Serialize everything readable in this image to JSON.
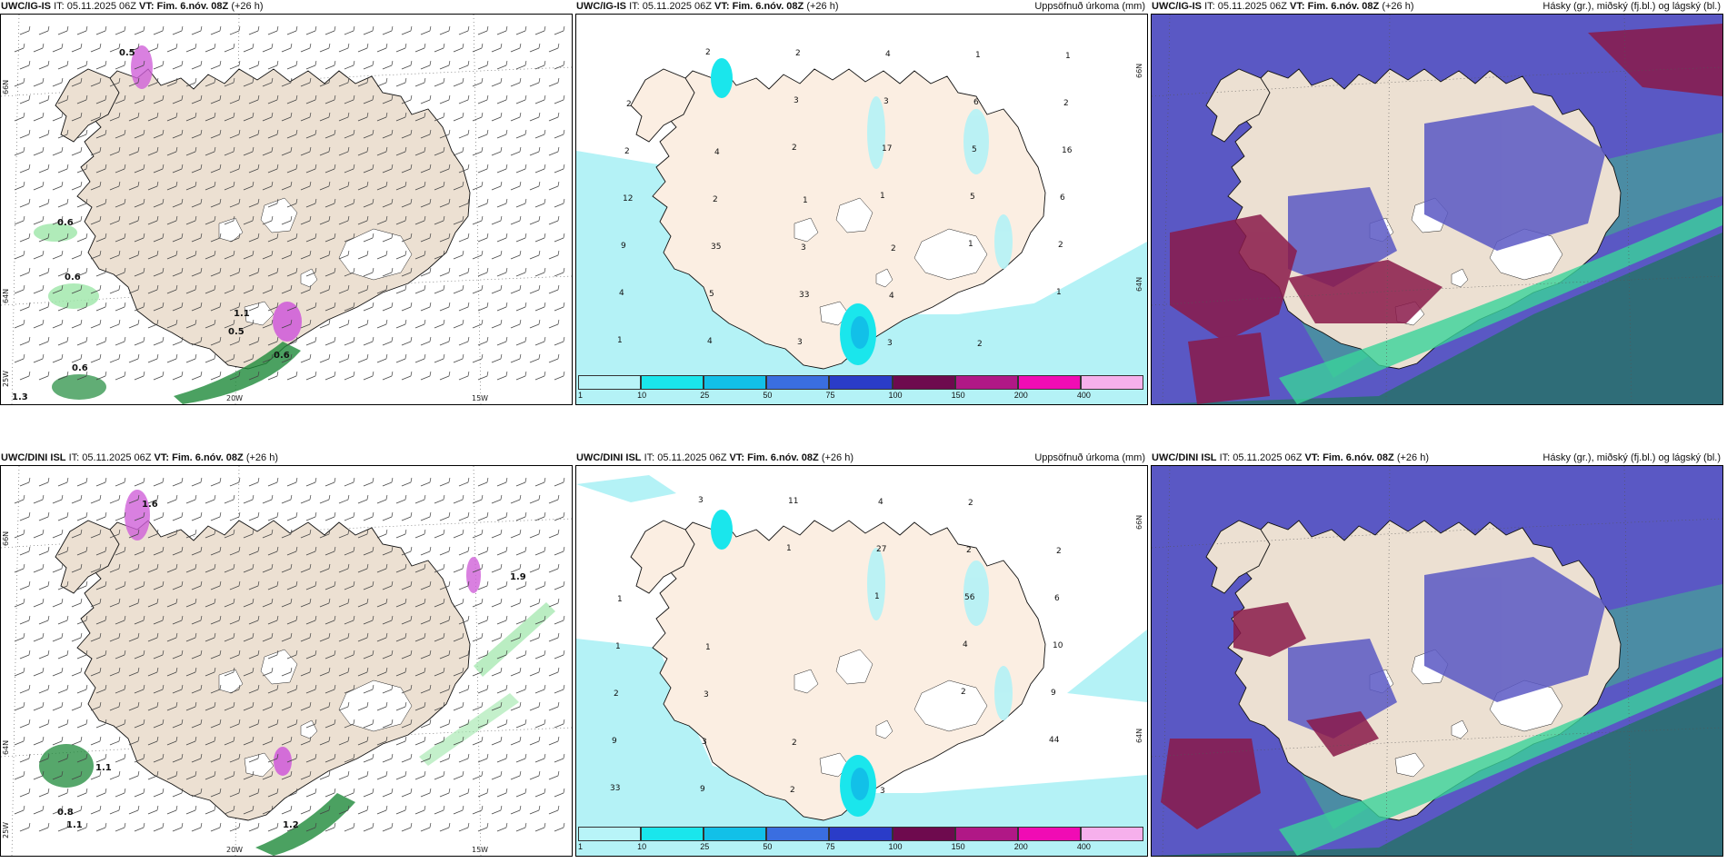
{
  "panels": [
    {
      "model": "UWC/IG-IS",
      "it": "IT: 05.11.2025 06Z",
      "vt_label": "VT:",
      "vt": "Fim. 6.nóv. 08Z",
      "lead": "(+26 h)",
      "title_right": "",
      "labels": [
        "0.5",
        "0.6",
        "0.6",
        "1.1",
        "0.5",
        "0.6",
        "1.3",
        "0.6"
      ],
      "axis": [
        "66N",
        "64N",
        "25W",
        "20W",
        "15W"
      ]
    },
    {
      "model": "UWC/IG-IS",
      "it": "IT: 05.11.2025 06Z",
      "vt_label": "VT:",
      "vt": "Fim. 6.nóv. 08Z",
      "lead": "(+26 h)",
      "title_right": "Uppsöfnuð úrkoma (mm)",
      "labels": [
        "2",
        "1",
        "1",
        "1",
        "1",
        "2",
        "3",
        "17",
        "5",
        "2",
        "4",
        "4",
        "2",
        "3",
        "5",
        "6",
        "9",
        "5",
        "3",
        "4",
        "6",
        "16",
        "12",
        "35",
        "33",
        "3",
        "1",
        "2",
        "2",
        "2",
        "3",
        "4",
        "2",
        "1",
        "2",
        "4",
        "1",
        "2"
      ],
      "axis": [
        "66N",
        "64N"
      ]
    },
    {
      "model": "UWC/IG-IS",
      "it": "IT: 05.11.2025 06Z",
      "vt_label": "VT:",
      "vt": "Fim. 6.nóv. 08Z",
      "lead": "(+26 h)",
      "title_right": "Hásky (gr.), miðský (fj.bl.) og lágský (bl.)"
    },
    {
      "model": "UWC/DINI ISL",
      "it": "IT: 05.11.2025 06Z",
      "vt_label": "VT:",
      "vt": "Fim. 6.nóv. 08Z",
      "lead": "(+26 h)",
      "title_right": "",
      "labels": [
        "1.6",
        "1.1",
        "0.8",
        "1.1",
        "1.2",
        "1.9"
      ],
      "axis": [
        "66N",
        "64N",
        "25W",
        "20W",
        "15W"
      ]
    },
    {
      "model": "UWC/DINI ISL",
      "it": "IT: 05.11.2025 06Z",
      "vt_label": "VT:",
      "vt": "Fim. 6.nóv. 08Z",
      "lead": "(+26 h)",
      "title_right": "Uppsöfnuð úrkoma (mm)",
      "labels": [
        "2",
        "44",
        "33",
        "3",
        "1",
        "1",
        "4",
        "9",
        "9",
        "9",
        "11",
        "27",
        "56",
        "10",
        "2",
        "3",
        "2",
        "4",
        "2",
        "6",
        "1",
        "3",
        "2",
        "3",
        "2",
        "2",
        "1",
        "1"
      ],
      "axis": [
        "66N",
        "64N"
      ]
    },
    {
      "model": "UWC/DINI ISL",
      "it": "IT: 05.11.2025 06Z",
      "vt_label": "VT:",
      "vt": "Fim. 6.nóv. 08Z",
      "lead": "(+26 h)",
      "title_right": "Hásky (gr.), miðský (fj.bl.) og lágský (bl.)"
    }
  ],
  "colorbar": {
    "ticks": [
      "1",
      "10",
      "25",
      "50",
      "75",
      "100",
      "150",
      "200",
      "400"
    ],
    "colors": [
      "#b8f4f8",
      "#1ae6ec",
      "#12c0e8",
      "#3a6ee0",
      "#2a3cc8",
      "#6e0a4e",
      "#b01886",
      "#f00cb4",
      "#f6b0ec"
    ]
  },
  "colors": {
    "land": "#ece0d2",
    "land_precip": "#fbeee2",
    "ice": "#ffffff",
    "precip_light": "#b4f2f6",
    "cloud_high": "#2f6d78",
    "cloud_mid": "#5a58c4",
    "cloud_low": "#8a1a4a",
    "wind_green": "#9ce6a8",
    "wind_dark": "#1e8a3a",
    "wind_magenta": "#d060d8"
  }
}
